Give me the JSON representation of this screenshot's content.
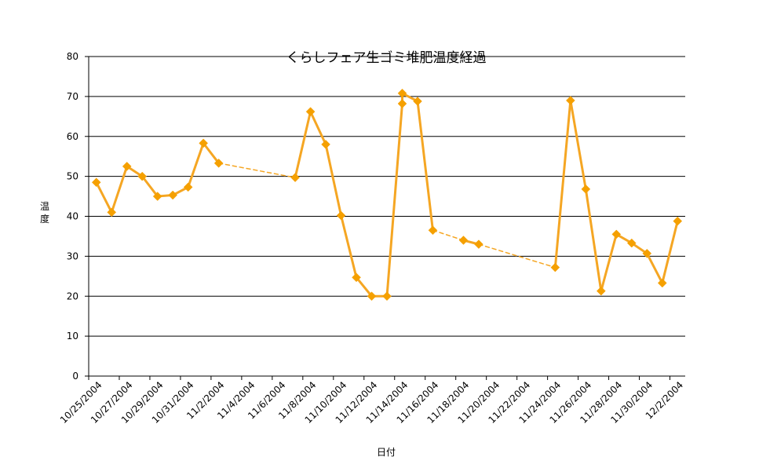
{
  "chart_data": {
    "type": "line",
    "title": "くらしフェア生ゴミ堆肥温度経過",
    "xlabel": "日付",
    "ylabel": "温度",
    "ylim": [
      0,
      80
    ],
    "yticks": [
      0,
      10,
      20,
      30,
      40,
      50,
      60,
      70,
      80
    ],
    "grid": "horizontal",
    "legend": "none",
    "colors": {
      "line": "#F5A623",
      "marker": "#F5A000",
      "grid": "#000000",
      "axis": "#000000"
    },
    "x_tick_labels": [
      "10/25/2004",
      "10/27/2004",
      "10/29/2004",
      "10/31/2004",
      "11/2/2004",
      "11/4/2004",
      "11/6/2004",
      "11/8/2004",
      "11/10/2004",
      "11/12/2004",
      "11/14/2004",
      "11/16/2004",
      "11/18/2004",
      "11/20/2004",
      "11/22/2004",
      "11/24/2004",
      "11/26/2004",
      "11/28/2004",
      "11/30/2004",
      "12/2/2004"
    ],
    "x_start": "10/25/2004",
    "x_end": "12/3/2004",
    "series": [
      {
        "points": [
          {
            "date": "10/25/2004",
            "value": 48.5
          },
          {
            "date": "10/26/2004",
            "value": 41
          },
          {
            "date": "10/27/2004",
            "value": 52.5
          },
          {
            "date": "10/28/2004",
            "value": 50
          },
          {
            "date": "10/29/2004",
            "value": 45
          },
          {
            "date": "10/30/2004",
            "value": 45.3
          },
          {
            "date": "10/31/2004",
            "value": 47.3
          },
          {
            "date": "11/1/2004",
            "value": 58.3
          },
          {
            "date": "11/2/2004",
            "value": 53.3
          },
          {
            "date": "11/7/2004",
            "value": 49.7
          },
          {
            "date": "11/8/2004",
            "value": 66.2
          },
          {
            "date": "11/9/2004",
            "value": 58
          },
          {
            "date": "11/10/2004",
            "value": 40.2
          },
          {
            "date": "11/11/2004",
            "value": 24.7
          },
          {
            "date": "11/12/2004",
            "value": 20
          },
          {
            "date": "11/13/2004",
            "value": 20
          },
          {
            "date": "11/14/2004",
            "value": 68.2
          },
          {
            "date": "11/14/2004",
            "value": 70.8
          },
          {
            "date": "11/15/2004",
            "value": 68.8
          },
          {
            "date": "11/16/2004",
            "value": 36.5
          },
          {
            "date": "11/18/2004",
            "value": 34
          },
          {
            "date": "11/19/2004",
            "value": 33
          },
          {
            "date": "11/24/2004",
            "value": 27.2
          },
          {
            "date": "11/25/2004",
            "value": 69
          },
          {
            "date": "11/26/2004",
            "value": 46.8
          },
          {
            "date": "11/27/2004",
            "value": 21.3
          },
          {
            "date": "11/28/2004",
            "value": 35.5
          },
          {
            "date": "11/29/2004",
            "value": 33.3
          },
          {
            "date": "11/30/2004",
            "value": 30.7
          },
          {
            "date": "12/1/2004",
            "value": 23.3
          },
          {
            "date": "12/2/2004",
            "value": 38.8
          }
        ],
        "dashed_segments_after": [
          "11/2/2004",
          "11/16/2004",
          "11/19/2004"
        ]
      }
    ]
  }
}
